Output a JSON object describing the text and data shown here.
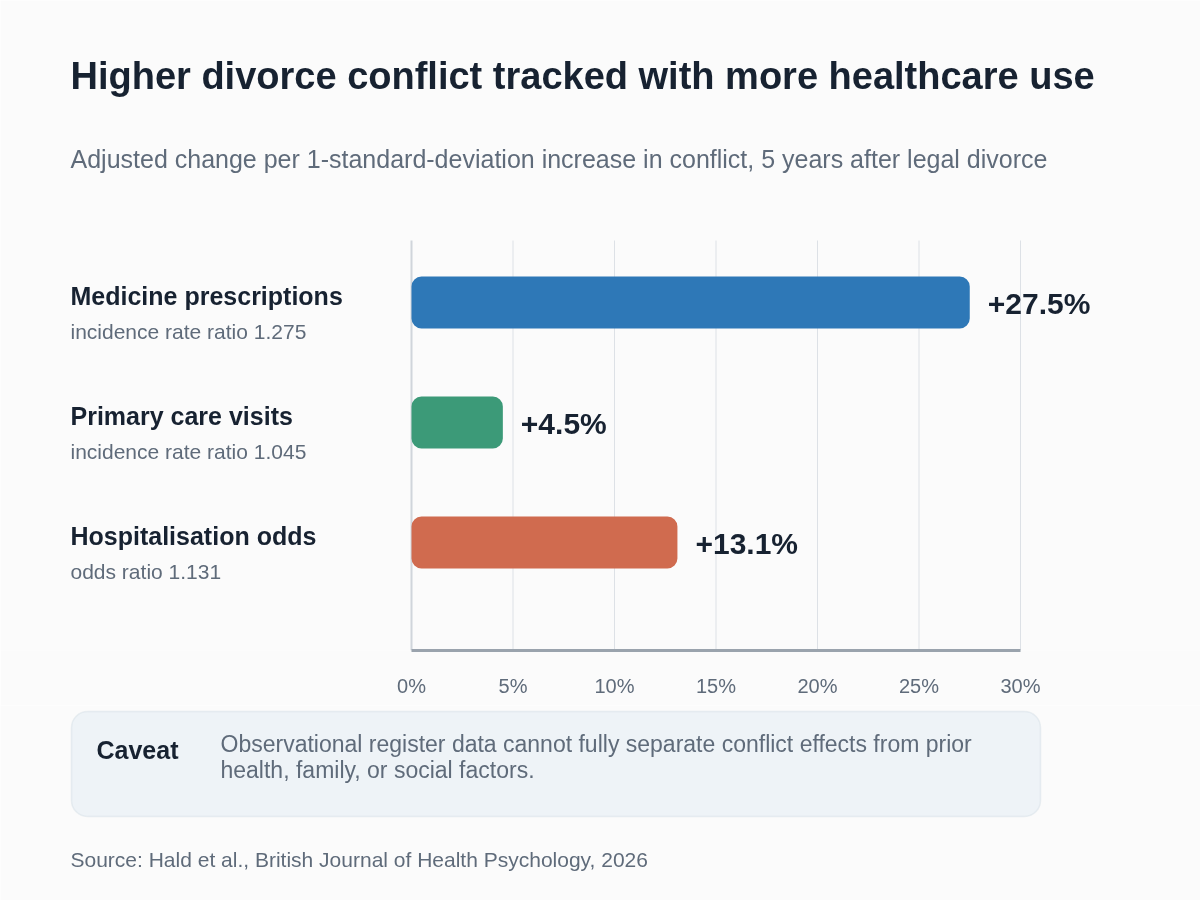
{
  "chart_data": {
    "type": "bar",
    "orientation": "horizontal",
    "title": "Higher divorce conflict tracked with more healthcare use",
    "subtitle": "Adjusted change per 1-standard-deviation increase in conflict, 5 years after legal divorce",
    "categories": [
      "Medicine prescriptions",
      "Primary care visits",
      "Hospitalisation odds"
    ],
    "values": [
      27.5,
      4.5,
      13.1
    ],
    "colors": [
      "#2e78b7",
      "#3c9a78",
      "#d06b4f"
    ],
    "value_labels": [
      "+27.5%",
      "+4.5%",
      "+13.1%"
    ],
    "xlim": [
      0,
      30
    ],
    "xticks": [
      {
        "value": 0,
        "label": "0%"
      },
      {
        "value": 5,
        "label": "5%"
      },
      {
        "value": 10,
        "label": "10%"
      },
      {
        "value": 15,
        "label": "15%"
      },
      {
        "value": 20,
        "label": "20%"
      },
      {
        "value": 25,
        "label": "25%"
      },
      {
        "value": 30,
        "label": "30%"
      }
    ],
    "grid": "x",
    "annotations": [
      "incidence rate ratio 1.275",
      "incidence rate ratio 1.045",
      "odds ratio 1.131",
      "Caveat",
      "Observational register data cannot fully separate conflict effects from prior health, family, or social factors.",
      "Source: Hald et al., British Journal of Health Psychology, 2026"
    ]
  }
}
